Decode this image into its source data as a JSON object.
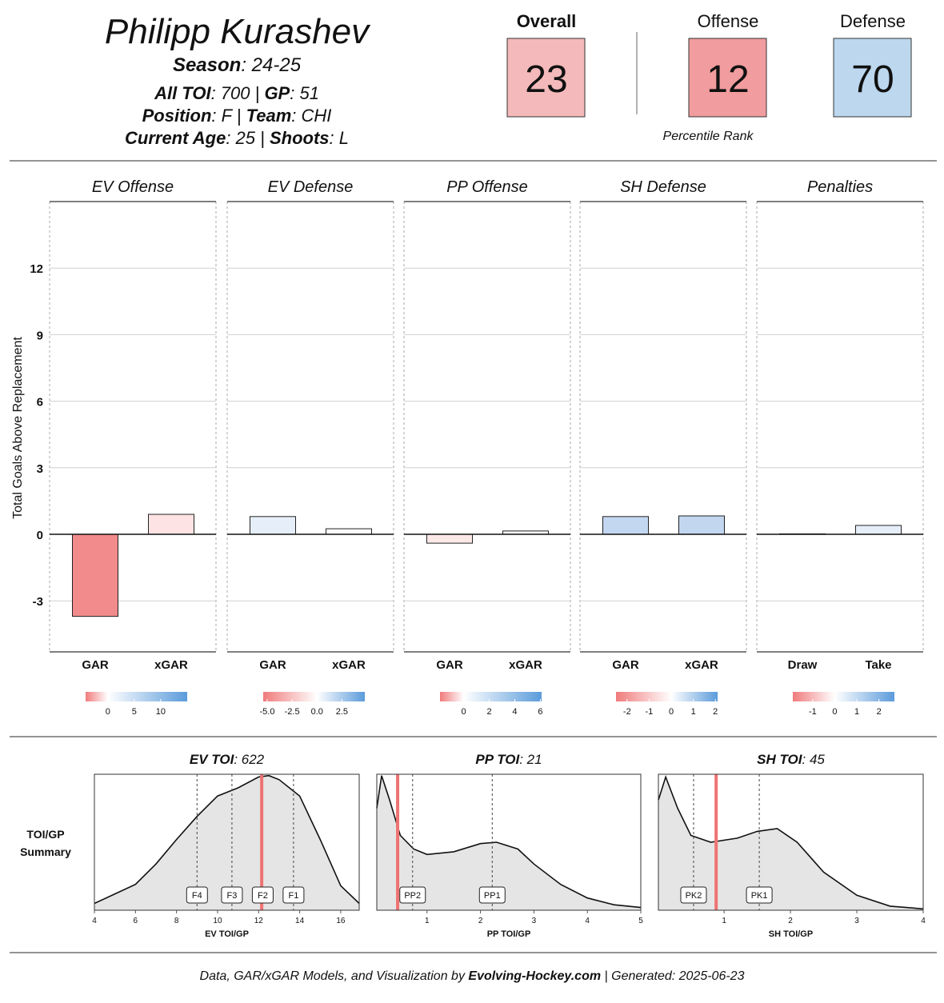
{
  "header": {
    "name": "Philipp Kurashev",
    "lines": [
      [
        {
          "label": "Season",
          "text": ": 24-25"
        }
      ],
      [
        {
          "label": "All TOI",
          "text": ": 700 | "
        },
        {
          "label": "GP",
          "text": ": 51"
        }
      ],
      [
        {
          "label": "Position",
          "text": ": F | "
        },
        {
          "label": "Team",
          "text": ": CHI"
        }
      ],
      [
        {
          "label": "Current Age",
          "text": ": 25 | "
        },
        {
          "label": "Shoots",
          "text": ": L"
        }
      ]
    ]
  },
  "ratings": {
    "items": [
      {
        "label": "Overall",
        "value": 23,
        "color": "#f4b9ba",
        "bold": true
      },
      {
        "label": "Offense",
        "value": 12,
        "color": "#f19c9e",
        "bold": false
      },
      {
        "label": "Defense",
        "value": 70,
        "color": "#bcd7ee",
        "bold": false
      }
    ],
    "caption": "Percentile Rank"
  },
  "chart_data": [
    {
      "type": "bar",
      "title": "EV Offense",
      "y_label": "Total Goals Above Replacement",
      "categories": [
        "GAR",
        "xGAR"
      ],
      "values": [
        -3.7,
        0.9
      ],
      "colors": [
        "#f28b8c",
        "#fde3e3"
      ],
      "ylim": [
        -5.3,
        15
      ],
      "yticks": [
        -3,
        0,
        3,
        6,
        9,
        12
      ],
      "grid": true,
      "colorbar": {
        "colors": [
          "#f07b7c",
          "#ffffff",
          "#5b9bdb"
        ],
        "lim": [
          -4.2,
          15
        ],
        "ticks": [
          0,
          5,
          10
        ]
      }
    },
    {
      "type": "bar",
      "title": "EV Defense",
      "categories": [
        "GAR",
        "xGAR"
      ],
      "values": [
        0.8,
        0.25
      ],
      "colors": [
        "#e6eef9",
        "#fbfcfe"
      ],
      "ylim": [
        -5.3,
        15
      ],
      "yticks": [
        -3,
        0,
        3,
        6,
        9,
        12
      ],
      "grid": true,
      "colorbar": {
        "colors": [
          "#f07b7c",
          "#ffffff",
          "#5b9bdb"
        ],
        "lim": [
          -5.4,
          4.8
        ],
        "ticks": [
          {
            "value": -5,
            "label": "-5.0"
          },
          {
            "value": -2.5,
            "label": "-2.5"
          },
          {
            "value": 0,
            "label": "0.0"
          },
          {
            "value": 2.5,
            "label": "2.5"
          }
        ]
      }
    },
    {
      "type": "bar",
      "title": "PP Offense",
      "categories": [
        "GAR",
        "xGAR"
      ],
      "values": [
        -0.4,
        0.15
      ],
      "colors": [
        "#fde8e8",
        "#f4f7fc"
      ],
      "ylim": [
        -5.3,
        15
      ],
      "yticks": [
        -3,
        0,
        3,
        6,
        9,
        12
      ],
      "grid": true,
      "colorbar": {
        "colors": [
          "#f07b7c",
          "#ffffff",
          "#5b9bdb"
        ],
        "lim": [
          -1.85,
          6.1
        ],
        "ticks": [
          0,
          2,
          4,
          6
        ]
      }
    },
    {
      "type": "bar",
      "title": "SH Defense",
      "categories": [
        "GAR",
        "xGAR"
      ],
      "values": [
        0.8,
        0.83
      ],
      "colors": [
        "#c4d7f0",
        "#c2d6f0"
      ],
      "ylim": [
        -5.3,
        15
      ],
      "yticks": [
        -3,
        0,
        3,
        6,
        9,
        12
      ],
      "grid": true,
      "colorbar": {
        "colors": [
          "#f07b7c",
          "#ffffff",
          "#5b9bdb"
        ],
        "lim": [
          -2.5,
          2.1
        ],
        "ticks": [
          -2,
          -1,
          0,
          1,
          2
        ]
      }
    },
    {
      "type": "bar",
      "title": "Penalties",
      "categories": [
        "Draw",
        "Take"
      ],
      "values": [
        0.02,
        0.4
      ],
      "colors": [
        "#fafbfe",
        "#e6eef9"
      ],
      "ylim": [
        -5.3,
        15
      ],
      "yticks": [
        -3,
        0,
        3,
        6,
        9,
        12
      ],
      "grid": true,
      "colorbar": {
        "colors": [
          "#f07b7c",
          "#ffffff",
          "#5b9bdb"
        ],
        "lim": [
          -1.9,
          2.7
        ],
        "ticks": [
          -1,
          0,
          1,
          2
        ]
      }
    },
    {
      "type": "density",
      "title": "EV TOI",
      "title_value": ": 622",
      "x_label": "EV TOI/GP",
      "xlim": [
        4,
        16.9
      ],
      "xticks": [
        4,
        6,
        8,
        10,
        12,
        14,
        16
      ],
      "ylim": [
        0,
        1
      ],
      "x": [
        4,
        5,
        6,
        7,
        8,
        9,
        10,
        11,
        12,
        12.5,
        13,
        14,
        15,
        16,
        16.9
      ],
      "values": [
        0.05,
        0.12,
        0.19,
        0.34,
        0.52,
        0.69,
        0.84,
        0.9,
        0.98,
        0.99,
        0.96,
        0.84,
        0.52,
        0.18,
        0.05
      ],
      "player_value": 12.15,
      "player_color": "#ef7373",
      "markers": [
        {
          "label": "F4",
          "value": 9.0
        },
        {
          "label": "F3",
          "value": 10.7
        },
        {
          "label": "F2",
          "value": 12.2
        },
        {
          "label": "F1",
          "value": 13.7
        }
      ]
    },
    {
      "type": "density",
      "title": "PP TOI",
      "title_value": ": 21",
      "x_label": "PP TOI/GP",
      "xlim": [
        0.06,
        5
      ],
      "xticks": [
        1,
        2,
        3,
        4,
        5
      ],
      "ylim": [
        0,
        1
      ],
      "x": [
        0.06,
        0.15,
        0.3,
        0.5,
        0.75,
        1,
        1.5,
        2,
        2.3,
        2.7,
        3,
        3.5,
        4,
        4.5,
        5
      ],
      "values": [
        0.75,
        0.99,
        0.81,
        0.55,
        0.45,
        0.41,
        0.43,
        0.49,
        0.5,
        0.45,
        0.34,
        0.19,
        0.09,
        0.04,
        0.02
      ],
      "player_value": 0.45,
      "player_color": "#ef7373",
      "markers": [
        {
          "label": "PP2",
          "value": 0.73
        },
        {
          "label": "PP1",
          "value": 2.22
        }
      ]
    },
    {
      "type": "density",
      "title": "SH TOI",
      "title_value": ": 45",
      "x_label": "SH TOI/GP",
      "xlim": [
        0.01,
        4
      ],
      "xticks": [
        1,
        2,
        3,
        4
      ],
      "ylim": [
        0,
        1
      ],
      "x": [
        0.01,
        0.12,
        0.3,
        0.5,
        0.8,
        1.2,
        1.5,
        1.8,
        2.1,
        2.5,
        3,
        3.5,
        4
      ],
      "values": [
        0.81,
        0.98,
        0.75,
        0.55,
        0.5,
        0.53,
        0.58,
        0.6,
        0.5,
        0.28,
        0.11,
        0.03,
        0.01
      ],
      "player_value": 0.88,
      "player_color": "#ef7373",
      "markers": [
        {
          "label": "PK2",
          "value": 0.54
        },
        {
          "label": "PK1",
          "value": 1.53
        }
      ]
    }
  ],
  "side_label": [
    "TOI/GP",
    "Summary"
  ],
  "footer": {
    "text": "Data, GAR/xGAR Models, and Visualization by ",
    "bold": "Evolving-Hockey.com",
    "tail": " | Generated: 2025-06-23"
  }
}
